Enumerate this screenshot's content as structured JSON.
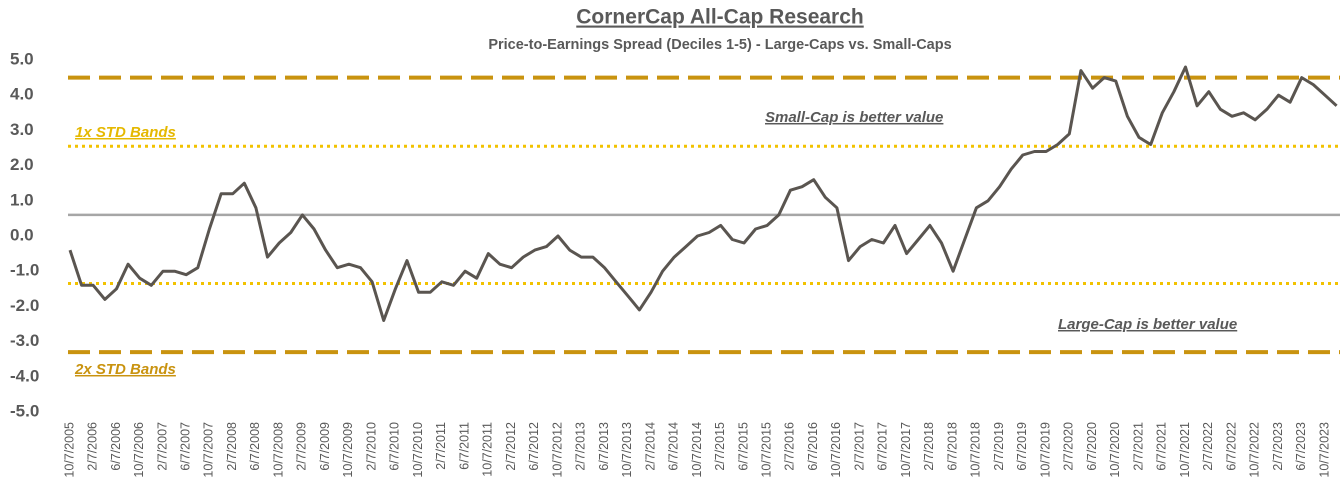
{
  "chart_data": {
    "type": "line",
    "title": "CornerCap All-Cap Research",
    "subtitle": "Price-to-Earnings Spread (Deciles 1-5) -  Large-Caps vs. Small-Caps",
    "annotations": [
      "1x STD Bands",
      "2x STD Bands",
      "Small-Cap is better value",
      "Large-Cap is better value"
    ],
    "categories": [
      "10/7/2005",
      null,
      "2/7/2006",
      null,
      "6/7/2006",
      null,
      "10/7/2006",
      null,
      "2/7/2007",
      null,
      "6/7/2007",
      null,
      "10/7/2007",
      null,
      "2/7/2008",
      null,
      "6/7/2008",
      null,
      "10/7/2008",
      null,
      "2/7/2009",
      null,
      "6/7/2009",
      null,
      "10/7/2009",
      null,
      "2/7/2010",
      null,
      "6/7/2010",
      null,
      "10/7/2010",
      null,
      "2/7/2011",
      null,
      "6/7/2011",
      null,
      "10/7/2011",
      null,
      "2/7/2012",
      null,
      "6/7/2012",
      null,
      "10/7/2012",
      null,
      "2/7/2013",
      null,
      "6/7/2013",
      null,
      "10/7/2013",
      null,
      "2/7/2014",
      null,
      "6/7/2014",
      null,
      "10/7/2014",
      null,
      "2/7/2015",
      null,
      "6/7/2015",
      null,
      "10/7/2015",
      null,
      "2/7/2016",
      null,
      "6/7/2016",
      null,
      "10/7/2016",
      null,
      "2/7/2017",
      null,
      "6/7/2017",
      null,
      "10/7/2017",
      null,
      "2/7/2018",
      null,
      "6/7/2018",
      null,
      "10/7/2018",
      null,
      "2/7/2019",
      null,
      "6/7/2019",
      null,
      "10/7/2019",
      null,
      "2/7/2020",
      null,
      "6/7/2020",
      null,
      "10/7/2020",
      null,
      "2/7/2021",
      null,
      "6/7/2021",
      null,
      "10/7/2021",
      null,
      "2/7/2022",
      null,
      "6/7/2022",
      null,
      "10/7/2022",
      null,
      "2/7/2023",
      null,
      "6/7/2023",
      null,
      "10/7/2023",
      null
    ],
    "series": [
      {
        "color": "#5a5550",
        "values": [
          -0.4,
          -1.4,
          -1.4,
          -1.8,
          -1.5,
          -0.8,
          -1.2,
          -1.4,
          -1.0,
          -1.0,
          -1.1,
          -0.9,
          0.2,
          1.2,
          1.2,
          1.5,
          0.8,
          -0.6,
          -0.2,
          0.1,
          0.6,
          0.2,
          -0.4,
          -0.9,
          -0.8,
          -0.9,
          -1.3,
          -2.4,
          -1.5,
          -0.7,
          -1.6,
          -1.6,
          -1.3,
          -1.4,
          -1.0,
          -1.2,
          -0.5,
          -0.8,
          -0.9,
          -0.6,
          -0.4,
          -0.3,
          0.0,
          -0.4,
          -0.6,
          -0.6,
          -0.9,
          -1.3,
          -1.7,
          -2.1,
          -1.6,
          -1.0,
          -0.6,
          -0.3,
          0.0,
          0.1,
          0.3,
          -0.1,
          -0.2,
          0.2,
          0.3,
          0.6,
          1.3,
          1.4,
          1.6,
          1.1,
          0.8,
          -0.7,
          -0.3,
          -0.1,
          -0.2,
          0.3,
          -0.5,
          -0.1,
          0.3,
          -0.2,
          -1.0,
          -0.1,
          0.8,
          1.0,
          1.4,
          1.9,
          2.3,
          2.4,
          2.4,
          2.6,
          2.9,
          4.7,
          4.2,
          4.5,
          4.4,
          3.4,
          2.8,
          2.6,
          3.5,
          4.1,
          4.8,
          3.7,
          4.1,
          3.6,
          3.4,
          3.5,
          3.3,
          3.6,
          4.0,
          3.8,
          4.5,
          4.3,
          4.0,
          3.7
        ]
      }
    ],
    "reference_lines": [
      {
        "value": 4.5,
        "style": "dashed",
        "color": "#c9930f"
      },
      {
        "value": 2.55,
        "style": "dotted",
        "color": "#f2c200"
      },
      {
        "value": 0.6,
        "style": "solid",
        "color": "#a6a6a6"
      },
      {
        "value": -1.35,
        "style": "dotted",
        "color": "#f2c200"
      },
      {
        "value": -3.3,
        "style": "dashed",
        "color": "#c9930f"
      }
    ],
    "ylim": [
      -5,
      5
    ],
    "yticks": [
      {
        "value": 5,
        "label": "5.0"
      },
      {
        "value": 4,
        "label": "4.0"
      },
      {
        "value": 3,
        "label": "3.0"
      },
      {
        "value": 2,
        "label": "2.0"
      },
      {
        "value": 1,
        "label": "1.0"
      },
      {
        "value": 0,
        "label": "0.0"
      },
      {
        "value": -1,
        "label": "-1.0"
      },
      {
        "value": -2,
        "label": "-2.0"
      },
      {
        "value": -3,
        "label": "-3.0"
      },
      {
        "value": -4,
        "label": "-4.0"
      },
      {
        "value": -5,
        "label": "-5.0"
      }
    ]
  }
}
